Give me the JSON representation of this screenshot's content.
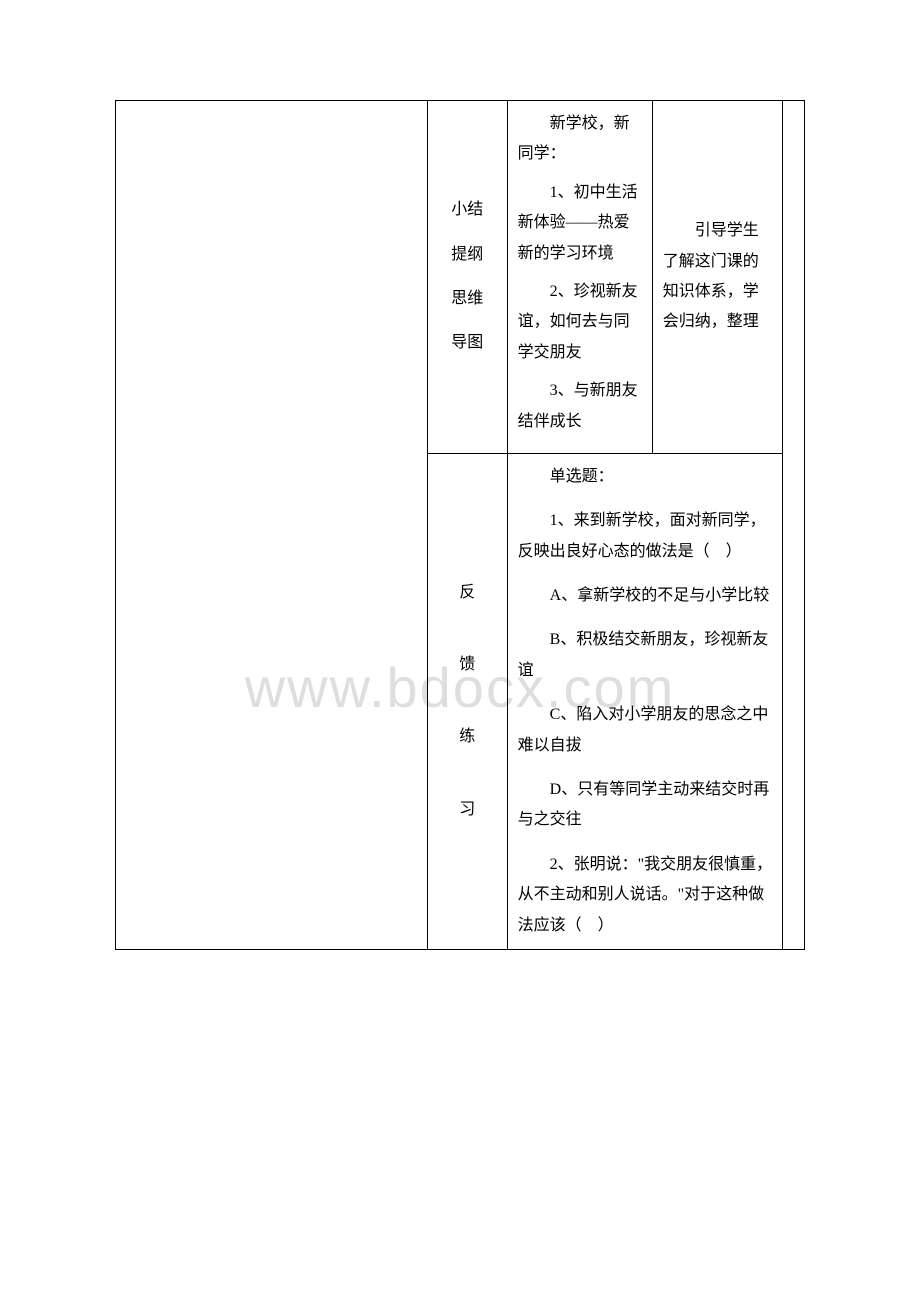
{
  "watermark": "www.bdocx.com",
  "row1": {
    "label_lines": [
      "小结",
      "提纲",
      "思维",
      "导图"
    ],
    "content": {
      "title": "新学校，新同学：",
      "item1": "1、初中生活新体验——热爱新的学习环境",
      "item2": "2、珍视新友谊，如何去与同学交朋友",
      "item3": "3、与新朋友结伴成长"
    },
    "guide": "引导学生了解这门课的知识体系，学会归纳，整理"
  },
  "row2": {
    "label_lines": [
      "反",
      "馈",
      "练",
      "习"
    ],
    "content": {
      "heading": "单选题：",
      "q1": {
        "stem": "1、来到新学校，面对新同学，反映出良好心态的做法是（　）",
        "a": "A、拿新学校的不足与小学比较",
        "b": "B、积极结交新朋友，珍视新友谊",
        "c": "C、陷入对小学朋友的思念之中难以自拔",
        "d": "D、只有等同学主动来结交时再与之交往"
      },
      "q2": {
        "stem": "2、张明说：\"我交朋友很慎重，从不主动和别人说话。\"对于这种做法应该（　）"
      }
    }
  },
  "colors": {
    "text": "#000000",
    "border": "#000000",
    "background": "#ffffff",
    "watermark": "#dedede"
  }
}
